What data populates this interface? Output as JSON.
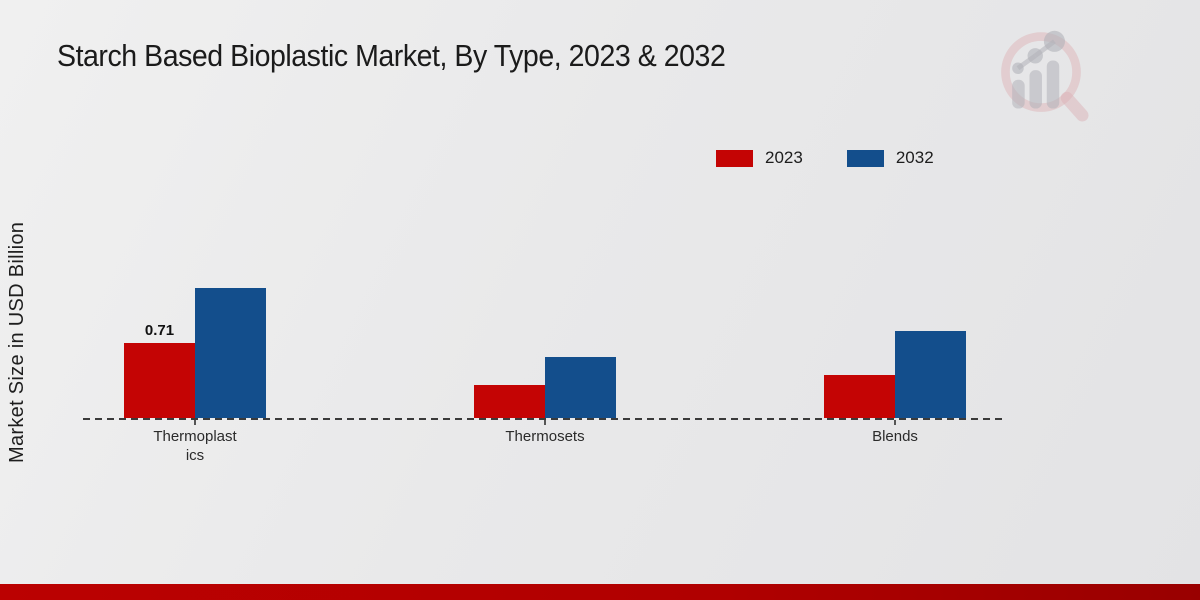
{
  "title": "Starch Based Bioplastic Market, By Type, 2023 & 2032",
  "ylabel": "Market Size in USD Billion",
  "legend": {
    "items": [
      {
        "label": "2023",
        "color": "#c40404"
      },
      {
        "label": "2032",
        "color": "#134e8c"
      }
    ]
  },
  "chart_data": {
    "type": "bar",
    "title": "Starch Based Bioplastic Market, By Type, 2023 & 2032",
    "ylabel": "Market Size in USD Billion",
    "xlabel": "",
    "categories": [
      "Thermoplastics",
      "Thermosets",
      "Blends"
    ],
    "tick_labels": [
      [
        "Thermoplast",
        "ics"
      ],
      [
        "Thermosets"
      ],
      [
        "Blends"
      ]
    ],
    "series": [
      {
        "name": "2023",
        "color": "#c40404",
        "values": [
          0.71,
          0.31,
          0.41
        ]
      },
      {
        "name": "2032",
        "color": "#134e8c",
        "values": [
          1.24,
          0.58,
          0.83
        ]
      }
    ],
    "data_labels": [
      {
        "series": "2023",
        "category": "Thermoplastics",
        "text": "0.71"
      }
    ],
    "ylim": [
      0,
      1.4
    ],
    "grid": false,
    "legend_position": "top-right",
    "baseline_style": "dashed",
    "y_axis_ticks_visible": false
  },
  "branding": {
    "logo_name": "market-research-magnifier-bar-chart-logo"
  },
  "footer": {
    "band_color": "#b00000"
  }
}
